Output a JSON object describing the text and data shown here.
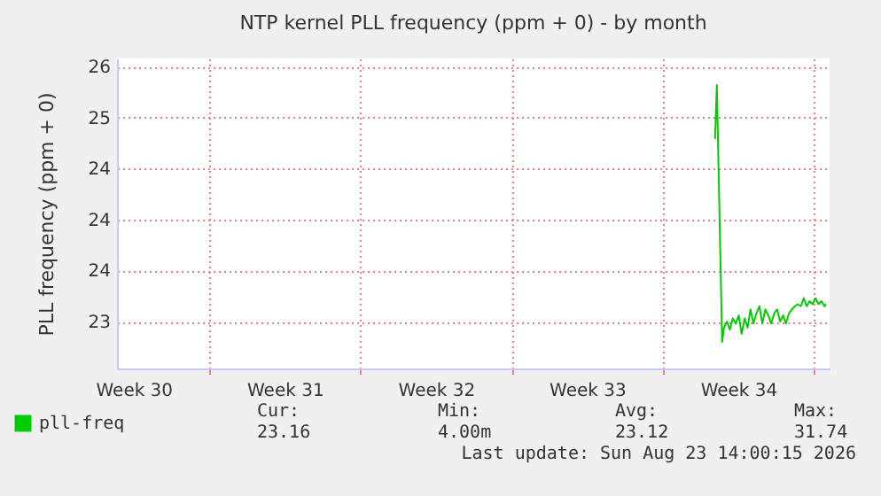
{
  "chart_data": {
    "type": "line",
    "title": "NTP kernel PLL frequency (ppm + 0) - by month",
    "ylabel": "PLL frequency (ppm + 0)",
    "x": [
      "2026-08-18T10:10",
      "2026-08-18T12:10",
      "2026-08-18T18:05",
      "2026-08-18T20:05",
      "2026-08-18T23:25",
      "2026-08-19T02:35",
      "2026-08-19T05:55",
      "2026-08-19T09:10",
      "2026-08-19T12:30",
      "2026-08-19T15:45",
      "2026-08-19T19:05",
      "2026-08-19T22:25",
      "2026-08-20T01:35",
      "2026-08-20T04:55",
      "2026-08-20T08:10",
      "2026-08-20T11:30",
      "2026-08-20T14:45",
      "2026-08-20T18:05",
      "2026-08-20T21:20",
      "2026-08-21T00:35",
      "2026-08-21T03:55",
      "2026-08-21T07:10",
      "2026-08-21T10:30",
      "2026-08-21T13:45",
      "2026-08-21T17:05",
      "2026-08-21T20:20",
      "2026-08-21T23:35",
      "2026-08-22T02:55",
      "2026-08-22T06:10",
      "2026-08-22T09:30",
      "2026-08-22T12:45",
      "2026-08-22T16:00",
      "2026-08-22T19:15",
      "2026-08-22T22:35",
      "2026-08-23T01:50",
      "2026-08-23T05:10",
      "2026-08-23T08:30",
      "2026-08-23T11:45",
      "2026-08-23T13:40"
    ],
    "series": [
      {
        "name": "pll-freq",
        "color": "#00cc00",
        "values": [
          24.79,
          25.32,
          22.8,
          22.94,
          23.0,
          22.92,
          23.03,
          22.98,
          23.06,
          22.88,
          23.03,
          22.94,
          23.12,
          22.98,
          23.08,
          23.15,
          22.98,
          23.12,
          23.06,
          22.98,
          23.08,
          23.12,
          23.0,
          23.06,
          22.98,
          23.08,
          23.12,
          23.15,
          23.17,
          23.15,
          23.23,
          23.15,
          23.2,
          23.17,
          23.23,
          23.17,
          23.2,
          23.15,
          23.17
        ]
      }
    ],
    "xlim": [
      "2026-07-21T17:30",
      "2026-08-23T17:30"
    ],
    "xticks": [
      {
        "value": "2026-07-22T12:00",
        "label": "Week 30"
      },
      {
        "value": "2026-07-26T00:00",
        "label": null
      },
      {
        "value": "2026-07-29T12:00",
        "label": "Week 31"
      },
      {
        "value": "2026-08-02T00:00",
        "label": null
      },
      {
        "value": "2026-08-05T12:00",
        "label": "Week 32"
      },
      {
        "value": "2026-08-09T00:00",
        "label": null
      },
      {
        "value": "2026-08-12T12:00",
        "label": "Week 33"
      },
      {
        "value": "2026-08-16T00:00",
        "label": null
      },
      {
        "value": "2026-08-19T12:00",
        "label": "Week 34"
      },
      {
        "value": "2026-08-23T00:00",
        "label": null
      }
    ],
    "ylim": [
      22.54,
      25.58
    ],
    "yticks": [
      {
        "value": 23.0,
        "label": "23"
      },
      {
        "value": 23.5,
        "label": "24"
      },
      {
        "value": 24.0,
        "label": "24"
      },
      {
        "value": 24.5,
        "label": "24"
      },
      {
        "value": 25.0,
        "label": "25"
      },
      {
        "value": 25.5,
        "label": "26"
      }
    ],
    "grid": true,
    "legend": "bottom left",
    "annotations": [
      "Cur:",
      "23.16",
      "Min:",
      "4.00m",
      "Avg:",
      "23.12",
      "Max:",
      "31.74",
      "Last update: Sun Aug 23 14:00:15 2026"
    ]
  }
}
